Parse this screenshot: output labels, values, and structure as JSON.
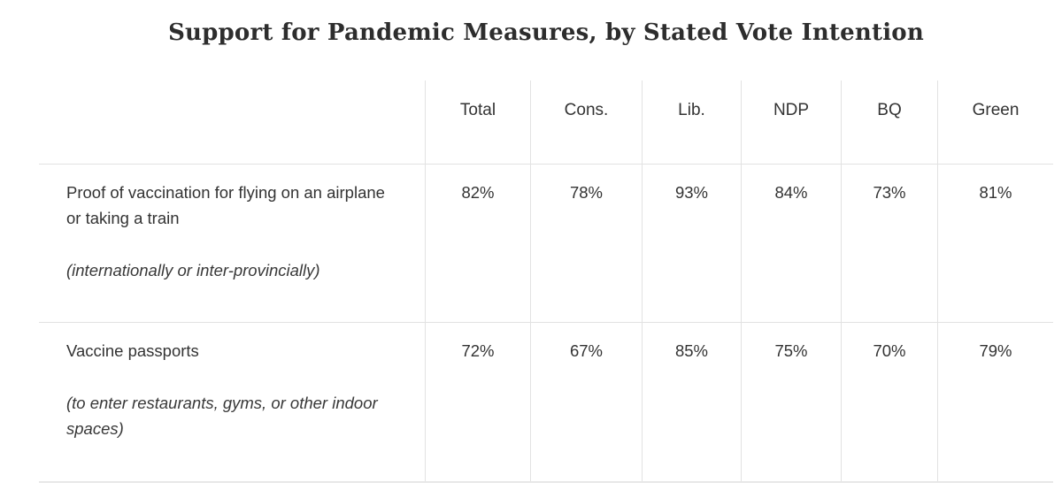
{
  "title": "Support for Pandemic Measures, by Stated Vote Intention",
  "table": {
    "columns": [
      "Total",
      "Cons.",
      "Lib.",
      "NDP",
      "BQ",
      "Green"
    ],
    "rows": [
      {
        "label": "Proof of vaccination for flying on an airplane or taking a train",
        "note": "(internationally or inter-provincially)",
        "values": [
          "82%",
          "78%",
          "93%",
          "84%",
          "73%",
          "81%"
        ]
      },
      {
        "label": "Vaccine passports",
        "note": "(to enter restaurants, gyms, or other indoor spaces)",
        "values": [
          "72%",
          "67%",
          "85%",
          "75%",
          "70%",
          "79%"
        ]
      }
    ]
  },
  "chart_data": {
    "type": "table",
    "title": "Support for Pandemic Measures, by Stated Vote Intention",
    "categories": [
      "Total",
      "Cons.",
      "Lib.",
      "NDP",
      "BQ",
      "Green"
    ],
    "series": [
      {
        "name": "Proof of vaccination for flying on an airplane or taking a train (internationally or inter-provincially)",
        "values": [
          82,
          78,
          93,
          84,
          73,
          81
        ]
      },
      {
        "name": "Vaccine passports (to enter restaurants, gyms, or other indoor spaces)",
        "values": [
          72,
          67,
          85,
          75,
          70,
          79
        ]
      }
    ],
    "unit": "%",
    "legend_position": "none",
    "grid": "column-and-row-dividers"
  }
}
